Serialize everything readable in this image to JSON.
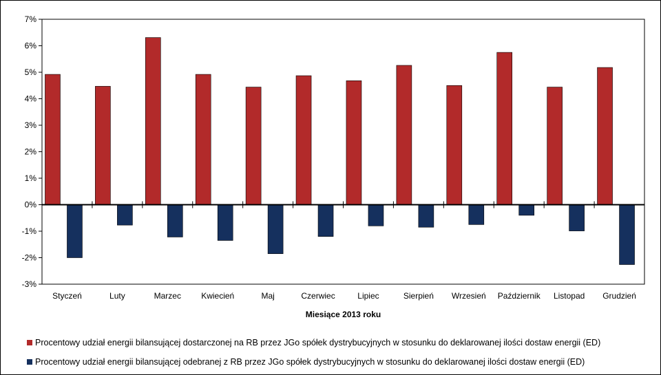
{
  "chart_data": {
    "type": "bar",
    "categories": [
      "Styczeń",
      "Luty",
      "Marzec",
      "Kwiecień",
      "Maj",
      "Czerwiec",
      "Lipiec",
      "Sierpień",
      "Wrzesień",
      "Październik",
      "Listopad",
      "Grudzień"
    ],
    "series": [
      {
        "name": "Procentowy udział energii bilansującej dostarczonej na RB przez JGo spółek dystrybucyjnych w stosunku do deklarowanej ilości dostaw energii (ED)",
        "color": "#b22a2a",
        "values": [
          4.92,
          4.47,
          6.31,
          4.92,
          4.44,
          4.87,
          4.68,
          5.26,
          4.5,
          5.75,
          4.44,
          5.18
        ]
      },
      {
        "name": "Procentowy udział energii bilansującej odebranej z RB przez JGo spółek dystrybucyjnych w stosunku do deklarowanej ilości dostaw energii (ED)",
        "color": "#15305e",
        "values": [
          -2.0,
          -0.77,
          -1.22,
          -1.35,
          -1.85,
          -1.2,
          -0.8,
          -0.85,
          -0.75,
          -0.4,
          -0.99,
          -2.26
        ]
      }
    ],
    "xlabel": "Miesiące 2013  roku",
    "ylabel": "",
    "ylim": [
      -3,
      7
    ],
    "yticks": [
      "-3%",
      "-2%",
      "-1%",
      "0%",
      "1%",
      "2%",
      "3%",
      "4%",
      "5%",
      "6%",
      "7%"
    ],
    "grid": false,
    "legend_position": "bottom"
  }
}
